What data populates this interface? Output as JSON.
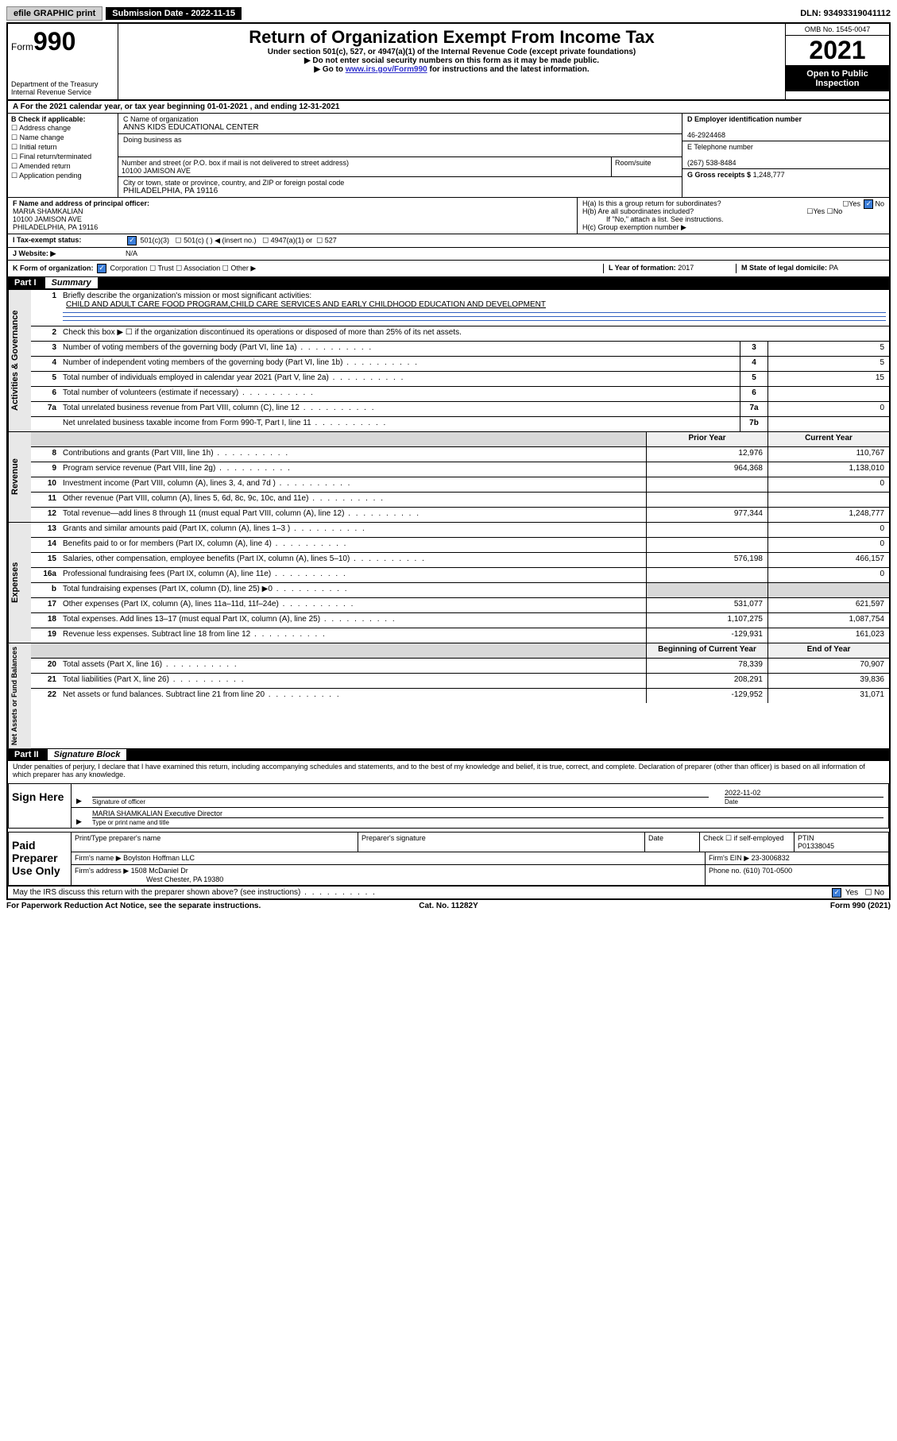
{
  "topbar": {
    "efile": "efile GRAPHIC print",
    "subdate_label": "Submission Date - 2022-11-15",
    "dln": "DLN: 93493319041112"
  },
  "header": {
    "form_prefix": "Form",
    "form_num": "990",
    "dept": "Department of the Treasury\nInternal Revenue Service",
    "title": "Return of Organization Exempt From Income Tax",
    "sub1": "Under section 501(c), 527, or 4947(a)(1) of the Internal Revenue Code (except private foundations)",
    "sub2": "▶ Do not enter social security numbers on this form as it may be made public.",
    "sub3_prefix": "▶ Go to ",
    "sub3_link": "www.irs.gov/Form990",
    "sub3_suffix": " for instructions and the latest information.",
    "omb": "OMB No. 1545-0047",
    "year": "2021",
    "inspect": "Open to Public Inspection"
  },
  "period": {
    "label_a": "A For the 2021 calendar year, or tax year beginning ",
    "begin": "01-01-2021",
    "mid": " , and ending ",
    "end": "12-31-2021"
  },
  "block_b": {
    "title": "B Check if applicable:",
    "opts": [
      "Address change",
      "Name change",
      "Initial return",
      "Final return/terminated",
      "Amended return",
      "Application pending"
    ]
  },
  "block_c": {
    "name_lbl": "C Name of organization",
    "name": "ANNS KIDS EDUCATIONAL CENTER",
    "dba_lbl": "Doing business as",
    "dba": "",
    "addr_lbl": "Number and street (or P.O. box if mail is not delivered to street address)",
    "room_lbl": "Room/suite",
    "addr": "10100 JAMISON AVE",
    "city_lbl": "City or town, state or province, country, and ZIP or foreign postal code",
    "city": "PHILADELPHIA, PA  19116"
  },
  "block_d": {
    "ein_lbl": "D Employer identification number",
    "ein": "46-2924468",
    "tel_lbl": "E Telephone number",
    "tel": "(267) 538-8484",
    "gross_lbl": "G Gross receipts $",
    "gross": "1,248,777"
  },
  "block_f": {
    "lbl": "F Name and address of principal officer:",
    "name": "MARIA SHAMKALIAN",
    "addr1": "10100 JAMISON AVE",
    "addr2": "PHILADELPHIA, PA  19116"
  },
  "block_h": {
    "ha_lbl": "H(a)  Is this a group return for subordinates?",
    "hb_lbl": "H(b)  Are all subordinates included?",
    "hb_note": "If \"No,\" attach a list. See instructions.",
    "hc_lbl": "H(c)  Group exemption number ▶"
  },
  "tax_status": {
    "lbl": "I   Tax-exempt status:",
    "opts": [
      "501(c)(3)",
      "501(c) (  ) ◀ (insert no.)",
      "4947(a)(1) or",
      "527"
    ]
  },
  "website": {
    "lbl": "J   Website: ▶",
    "val": "N/A"
  },
  "form_org": {
    "lbl": "K Form of organization:",
    "opts": [
      "Corporation",
      "Trust",
      "Association",
      "Other ▶"
    ],
    "year_lbl": "L Year of formation:",
    "year": "2017",
    "state_lbl": "M State of legal domicile:",
    "state": "PA"
  },
  "part1": {
    "hdr": "Part I",
    "title": "Summary",
    "mission_lbl": "Briefly describe the organization's mission or most significant activities:",
    "mission": "CHILD AND ADULT CARE FOOD PROGRAM,CHILD CARE SERVICES AND EARLY CHILDHOOD EDUCATION AND DEVELOPMENT",
    "line2": "Check this box ▶ ☐  if the organization discontinued its operations or disposed of more than 25% of its net assets."
  },
  "gov_lines": [
    {
      "n": "3",
      "d": "Number of voting members of the governing body (Part VI, line 1a)",
      "b": "3",
      "v": "5"
    },
    {
      "n": "4",
      "d": "Number of independent voting members of the governing body (Part VI, line 1b)",
      "b": "4",
      "v": "5"
    },
    {
      "n": "5",
      "d": "Total number of individuals employed in calendar year 2021 (Part V, line 2a)",
      "b": "5",
      "v": "15"
    },
    {
      "n": "6",
      "d": "Total number of volunteers (estimate if necessary)",
      "b": "6",
      "v": ""
    },
    {
      "n": "7a",
      "d": "Total unrelated business revenue from Part VIII, column (C), line 12",
      "b": "7a",
      "v": "0"
    },
    {
      "n": "",
      "d": "Net unrelated business taxable income from Form 990-T, Part I, line 11",
      "b": "7b",
      "v": ""
    }
  ],
  "rev_hdr": {
    "prior": "Prior Year",
    "curr": "Current Year"
  },
  "rev_lines": [
    {
      "n": "8",
      "d": "Contributions and grants (Part VIII, line 1h)",
      "p": "12,976",
      "c": "110,767"
    },
    {
      "n": "9",
      "d": "Program service revenue (Part VIII, line 2g)",
      "p": "964,368",
      "c": "1,138,010"
    },
    {
      "n": "10",
      "d": "Investment income (Part VIII, column (A), lines 3, 4, and 7d )",
      "p": "",
      "c": "0"
    },
    {
      "n": "11",
      "d": "Other revenue (Part VIII, column (A), lines 5, 6d, 8c, 9c, 10c, and 11e)",
      "p": "",
      "c": ""
    },
    {
      "n": "12",
      "d": "Total revenue—add lines 8 through 11 (must equal Part VIII, column (A), line 12)",
      "p": "977,344",
      "c": "1,248,777"
    }
  ],
  "exp_lines": [
    {
      "n": "13",
      "d": "Grants and similar amounts paid (Part IX, column (A), lines 1–3 )",
      "p": "",
      "c": "0"
    },
    {
      "n": "14",
      "d": "Benefits paid to or for members (Part IX, column (A), line 4)",
      "p": "",
      "c": "0"
    },
    {
      "n": "15",
      "d": "Salaries, other compensation, employee benefits (Part IX, column (A), lines 5–10)",
      "p": "576,198",
      "c": "466,157"
    },
    {
      "n": "16a",
      "d": "Professional fundraising fees (Part IX, column (A), line 11e)",
      "p": "",
      "c": "0"
    },
    {
      "n": "b",
      "d": "Total fundraising expenses (Part IX, column (D), line 25) ▶0",
      "p": "shade",
      "c": "shade"
    },
    {
      "n": "17",
      "d": "Other expenses (Part IX, column (A), lines 11a–11d, 11f–24e)",
      "p": "531,077",
      "c": "621,597"
    },
    {
      "n": "18",
      "d": "Total expenses. Add lines 13–17 (must equal Part IX, column (A), line 25)",
      "p": "1,107,275",
      "c": "1,087,754"
    },
    {
      "n": "19",
      "d": "Revenue less expenses. Subtract line 18 from line 12",
      "p": "-129,931",
      "c": "161,023"
    }
  ],
  "net_hdr": {
    "prior": "Beginning of Current Year",
    "curr": "End of Year"
  },
  "net_lines": [
    {
      "n": "20",
      "d": "Total assets (Part X, line 16)",
      "p": "78,339",
      "c": "70,907"
    },
    {
      "n": "21",
      "d": "Total liabilities (Part X, line 26)",
      "p": "208,291",
      "c": "39,836"
    },
    {
      "n": "22",
      "d": "Net assets or fund balances. Subtract line 21 from line 20",
      "p": "-129,952",
      "c": "31,071"
    }
  ],
  "part2": {
    "hdr": "Part II",
    "title": "Signature Block",
    "decl": "Under penalties of perjury, I declare that I have examined this return, including accompanying schedules and statements, and to the best of my knowledge and belief, it is true, correct, and complete. Declaration of preparer (other than officer) is based on all information of which preparer has any knowledge."
  },
  "sign": {
    "here": "Sign Here",
    "sig_lbl": "Signature of officer",
    "date_lbl": "Date",
    "date": "2022-11-02",
    "name": "MARIA SHAMKALIAN  Executive Director",
    "name_lbl": "Type or print name and title"
  },
  "paid": {
    "title": "Paid Preparer Use Only",
    "name_lbl": "Print/Type preparer's name",
    "sig_lbl": "Preparer's signature",
    "date_lbl": "Date",
    "check_lbl": "Check ☐ if self-employed",
    "ptin_lbl": "PTIN",
    "ptin": "P01338045",
    "firm_lbl": "Firm's name    ▶",
    "firm": "Boylston Hoffman LLC",
    "ein_lbl": "Firm's EIN ▶",
    "ein": "23-3006832",
    "addr_lbl": "Firm's address ▶",
    "addr1": "1508 McDaniel Dr",
    "addr2": "West Chester, PA  19380",
    "phone_lbl": "Phone no.",
    "phone": "(610) 701-0500"
  },
  "discuss": "May the IRS discuss this return with the preparer shown above? (see instructions)",
  "footer": {
    "left": "For Paperwork Reduction Act Notice, see the separate instructions.",
    "mid": "Cat. No. 11282Y",
    "right": "Form 990 (2021)"
  },
  "vtabs": {
    "gov": "Activities & Governance",
    "rev": "Revenue",
    "exp": "Expenses",
    "net": "Net Assets or Fund Balances"
  }
}
